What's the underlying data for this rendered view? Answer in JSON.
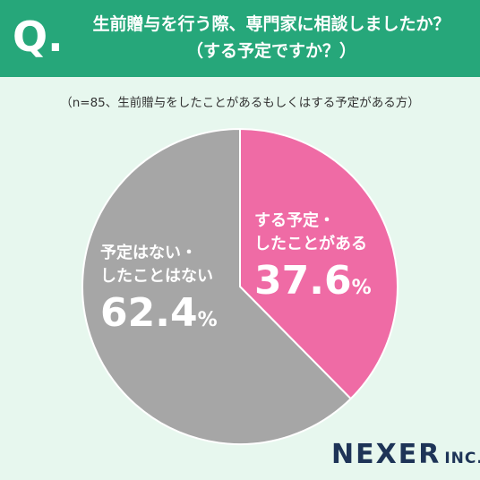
{
  "header": {
    "q_mark": "Q.",
    "title_line1": "生前贈与を行う際、専門家に相談しましたか？",
    "title_line2": "（する予定ですか？）"
  },
  "note": "（n=85、生前贈与をしたことがあるもしくはする予定がある方）",
  "chart_data": {
    "type": "pie",
    "slices": [
      {
        "label_line1": "する予定・",
        "label_line2": "したことがある",
        "value": 37.6,
        "value_text": "37.6",
        "color": "#ef6ba5"
      },
      {
        "label_line1": "予定はない・",
        "label_line2": "したことはない",
        "value": 62.4,
        "value_text": "62.4",
        "color": "#a6a6a6"
      }
    ],
    "unit": "%",
    "start": "12 o'clock, clockwise"
  },
  "logo": {
    "name": "NEXER",
    "suffix": "INC."
  },
  "colors": {
    "header": "#26a77a",
    "background": "#e7f7ee",
    "logo": "#1e3457"
  }
}
